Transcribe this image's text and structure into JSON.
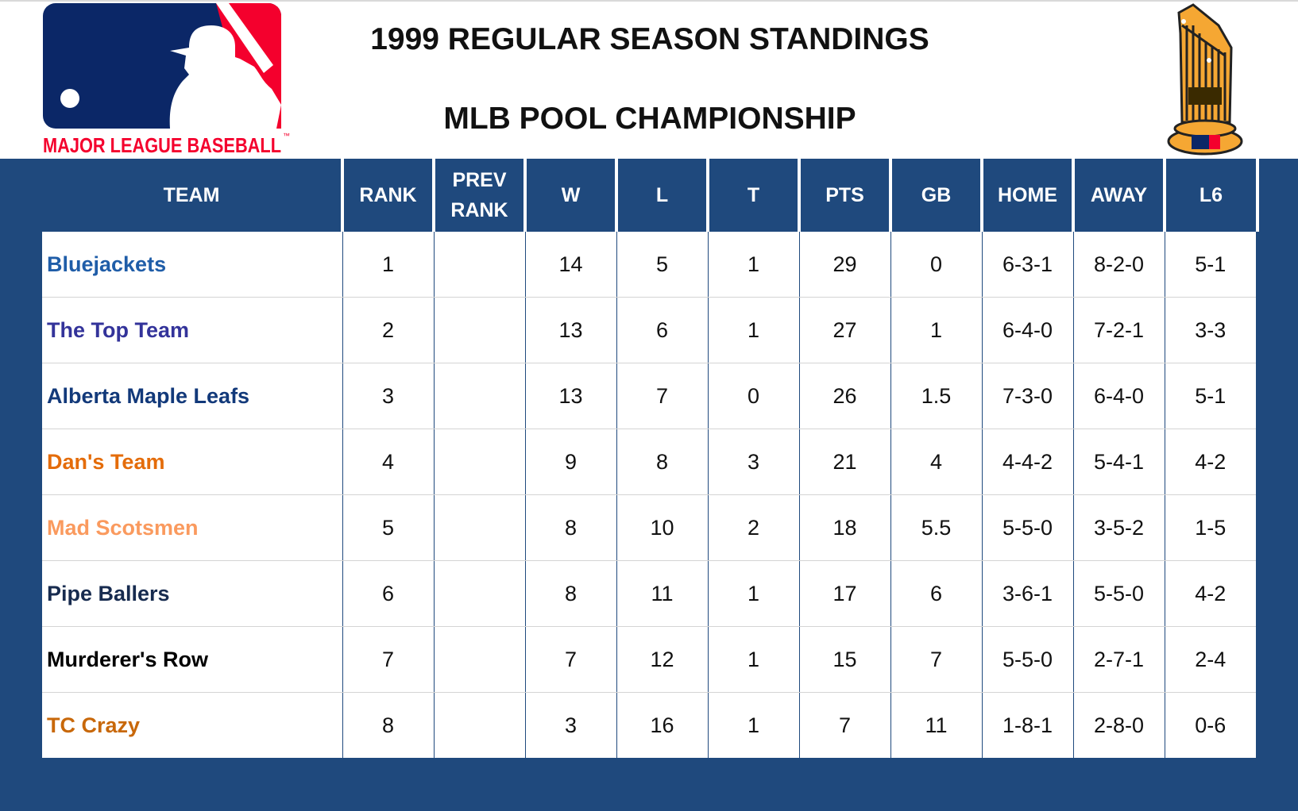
{
  "header": {
    "title": "1999 REGULAR SEASON STANDINGS",
    "subtitle": "MLB POOL CHAMPIONSHIP",
    "logo_text": "MAJOR LEAGUE BASEBALL",
    "logo_tm": "™"
  },
  "colors": {
    "header_bg": "#1F497D",
    "logo_blue": "#0B2767",
    "logo_red": "#F4002D",
    "trophy_gold": "#F5A733"
  },
  "table": {
    "columns": [
      "TEAM",
      "RANK",
      "PREV RANK",
      "W",
      "L",
      "T",
      "PTS",
      "GB",
      "HOME",
      "AWAY",
      "L6"
    ],
    "prev_rank_lines": [
      "PREV",
      "RANK"
    ],
    "rows": [
      {
        "team": "Bluejackets",
        "color": "#1F5DA8",
        "rank": "1",
        "prev": "",
        "w": "14",
        "l": "5",
        "t": "1",
        "pts": "29",
        "gb": "0",
        "home": "6-3-1",
        "away": "8-2-0",
        "l6": "5-1"
      },
      {
        "team": "The Top Team",
        "color": "#33339A",
        "rank": "2",
        "prev": "",
        "w": "13",
        "l": "6",
        "t": "1",
        "pts": "27",
        "gb": "1",
        "home": "6-4-0",
        "away": "7-2-1",
        "l6": "3-3"
      },
      {
        "team": "Alberta Maple Leafs",
        "color": "#12397A",
        "rank": "3",
        "prev": "",
        "w": "13",
        "l": "7",
        "t": "0",
        "pts": "26",
        "gb": "1.5",
        "home": "7-3-0",
        "away": "6-4-0",
        "l6": "5-1"
      },
      {
        "team": "Dan's Team",
        "color": "#E46C0A",
        "rank": "4",
        "prev": "",
        "w": "9",
        "l": "8",
        "t": "3",
        "pts": "21",
        "gb": "4",
        "home": "4-4-2",
        "away": "5-4-1",
        "l6": "4-2"
      },
      {
        "team": "Mad Scotsmen",
        "color": "#FA9A5E",
        "rank": "5",
        "prev": "",
        "w": "8",
        "l": "10",
        "t": "2",
        "pts": "18",
        "gb": "5.5",
        "home": "5-5-0",
        "away": "3-5-2",
        "l6": "1-5"
      },
      {
        "team": "Pipe Ballers",
        "color": "#172B4F",
        "rank": "6",
        "prev": "",
        "w": "8",
        "l": "11",
        "t": "1",
        "pts": "17",
        "gb": "6",
        "home": "3-6-1",
        "away": "5-5-0",
        "l6": "4-2"
      },
      {
        "team": "Murderer's Row",
        "color": "#000000",
        "rank": "7",
        "prev": "",
        "w": "7",
        "l": "12",
        "t": "1",
        "pts": "15",
        "gb": "7",
        "home": "5-5-0",
        "away": "2-7-1",
        "l6": "2-4"
      },
      {
        "team": "TC Crazy",
        "color": "#C8680A",
        "rank": "8",
        "prev": "",
        "w": "3",
        "l": "16",
        "t": "1",
        "pts": "7",
        "gb": "11",
        "home": "1-8-1",
        "away": "2-8-0",
        "l6": "0-6"
      }
    ]
  }
}
